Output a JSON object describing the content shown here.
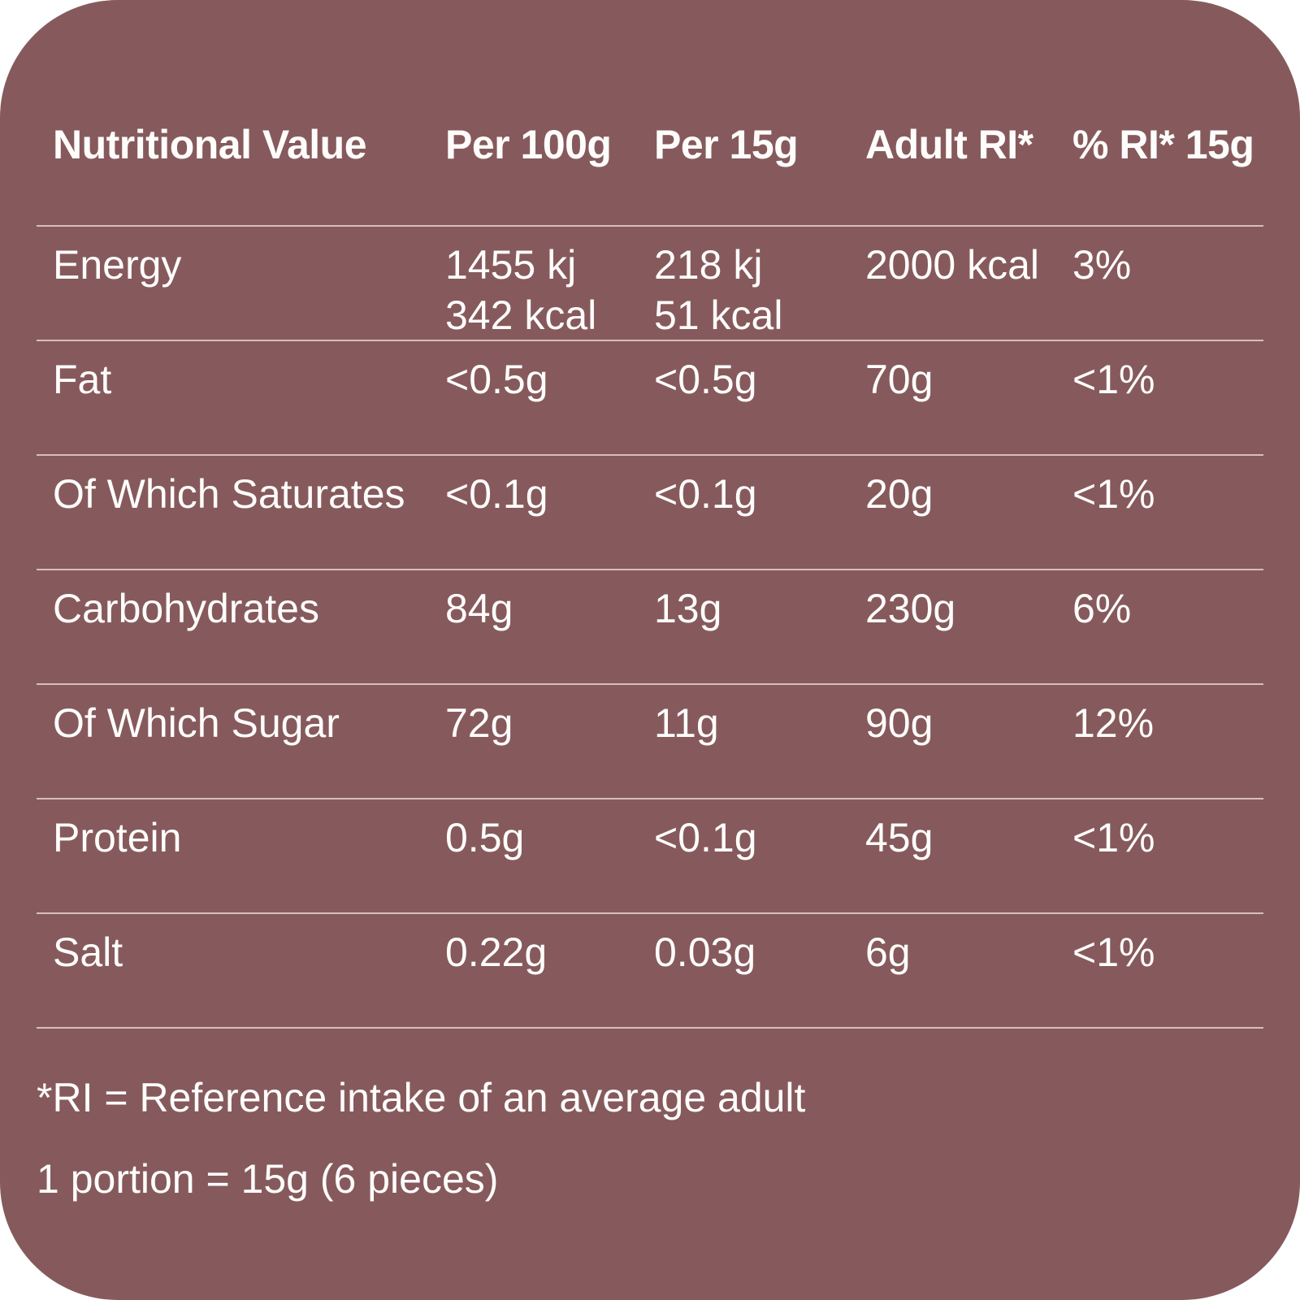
{
  "colors": {
    "card_background": "#865a5c",
    "text": "#fffdfc",
    "divider": "#f6e6e4",
    "page_background": "#ffffff"
  },
  "table": {
    "headers": [
      "Nutritional Value",
      "Per 100g",
      "Per 15g",
      "Adult RI*",
      "% RI* 15g"
    ],
    "rows": [
      {
        "label": "Energy",
        "per100g": "1455 kj",
        "per100g_line2": "342 kcal",
        "per15g": "218 kj",
        "per15g_line2": "51 kcal",
        "adult_ri": "2000 kcal",
        "pct_ri": "3%"
      },
      {
        "label": "Fat",
        "per100g": "<0.5g",
        "per15g": "<0.5g",
        "adult_ri": "70g",
        "pct_ri": "<1%"
      },
      {
        "label": "Of Which Saturates",
        "per100g": "<0.1g",
        "per15g": "<0.1g",
        "adult_ri": "20g",
        "pct_ri": "<1%"
      },
      {
        "label": "Carbohydrates",
        "per100g": "84g",
        "per15g": "13g",
        "adult_ri": "230g",
        "pct_ri": "6%"
      },
      {
        "label": "Of Which Sugar",
        "per100g": "72g",
        "per15g": "11g",
        "adult_ri": "90g",
        "pct_ri": "12%"
      },
      {
        "label": "Protein",
        "per100g": "0.5g",
        "per15g": "<0.1g",
        "adult_ri": "45g",
        "pct_ri": "<1%"
      },
      {
        "label": "Salt",
        "per100g": "0.22g",
        "per15g": "0.03g",
        "adult_ri": "6g",
        "pct_ri": "<1%"
      }
    ]
  },
  "footnotes": {
    "line1": "*RI = Reference intake of an average adult",
    "line2": "1 portion = 15g (6 pieces)"
  }
}
